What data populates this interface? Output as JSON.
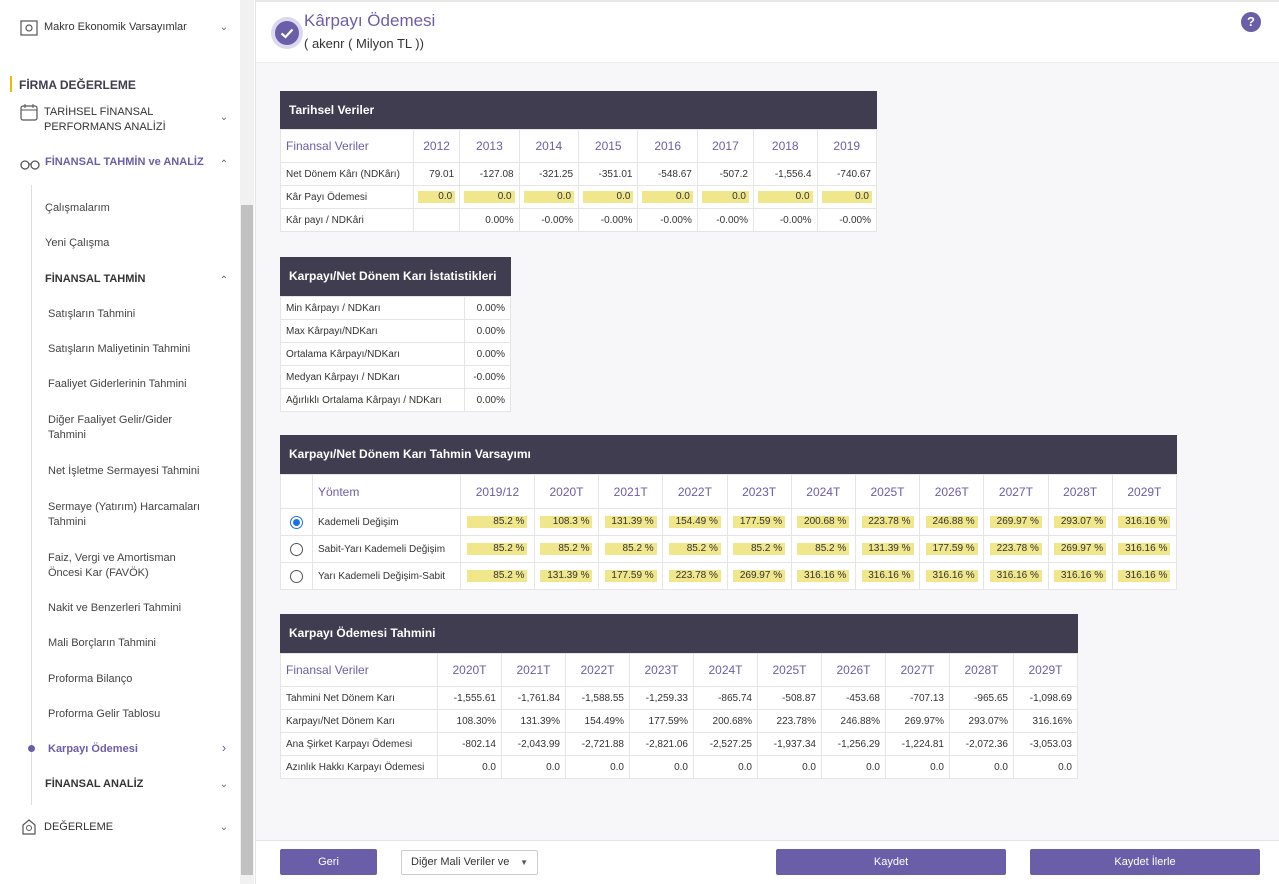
{
  "sidebar": {
    "macro_label": "Makro Ekonomik Varsayımlar",
    "firma_label": "FİRMA DEĞERLEME",
    "tarihsel_label_1": "TARİHSEL FİNANSAL",
    "tarihsel_label_2": "PERFORMANS ANALİZİ",
    "finansal_tahmin_analiz": "FİNANSAL TAHMİN ve ANALİZ",
    "calismalarim": "Çalışmalarım",
    "yeni_calisma": "Yeni Çalışma",
    "finansal_tahmin": "FİNANSAL TAHMİN",
    "items": [
      "Satışların Tahmini",
      "Satışların Maliyetinin Tahmini",
      "Faaliyet Giderlerinin Tahmini",
      "Diğer Faaliyet Gelir/Gider",
      "Tahmini",
      "Net İşletme Sermayesi Tahmini",
      "Sermaye (Yatırım) Harcamaları",
      "Tahmini",
      "Faiz, Vergi ve Amortisman",
      "Öncesi Kar (FAVÖK)",
      "Nakit ve Benzerleri Tahmini",
      "Mali Borçların Tahmini",
      "Proforma Bilanço",
      "Proforma Gelir Tablosu",
      "Karpayı Ödemesi"
    ],
    "finansal_analiz": "FİNANSAL ANALİZ",
    "degerleme": "DEĞERLEME"
  },
  "header": {
    "title": "Kârpayı Ödemesi",
    "subtitle": "( akenr ( Milyon TL ))",
    "help": "?"
  },
  "tarihsel": {
    "title": "Tarihsel Veriler",
    "col0": "Finansal Veriler",
    "years": [
      "2012",
      "2013",
      "2014",
      "2015",
      "2016",
      "2017",
      "2018",
      "2019"
    ],
    "rows": [
      {
        "label": "Net Dönem Kârı (NDKârı)",
        "values": [
          "79.01",
          "-127.08",
          "-321.25",
          "-351.01",
          "-548.67",
          "-507.2",
          "-1,556.4",
          "-740.67"
        ]
      },
      {
        "label": "Kâr Payı Ödemesi",
        "values": [
          "0.0",
          "0.0",
          "0.0",
          "0.0",
          "0.0",
          "0.0",
          "0.0",
          "0.0"
        ]
      },
      {
        "label": "Kâr payı / NDKâri",
        "values": [
          "",
          "0.00%",
          "-0.00%",
          "-0.00%",
          "-0.00%",
          "-0.00%",
          "-0.00%",
          "-0.00%"
        ]
      }
    ]
  },
  "stats": {
    "title": "Karpayı/Net Dönem Karı İstatistikleri",
    "rows": [
      {
        "label": "Min Kârpayı / NDKarı",
        "value": "0.00%"
      },
      {
        "label": "Max Kârpayı/NDKarı",
        "value": "0.00%"
      },
      {
        "label": "Ortalama Kârpayı/NDKarı",
        "value": "0.00%"
      },
      {
        "label": "Medyan Kârpayı / NDKarı",
        "value": "-0.00%"
      },
      {
        "label": "Ağırlıklı Ortalama Kârpayı / NDKarı",
        "value": "0.00%"
      }
    ]
  },
  "varsayim": {
    "title": "Karpayı/Net Dönem Karı Tahmin Varsayımı",
    "col0": "Yöntem",
    "years": [
      "2019/12",
      "2020T",
      "2021T",
      "2022T",
      "2023T",
      "2024T",
      "2025T",
      "2026T",
      "2027T",
      "2028T",
      "2029T"
    ],
    "rows": [
      {
        "label": "Kademeli Değişim",
        "selected": true,
        "values": [
          "85.2 %",
          "108.3 %",
          "131.39 %",
          "154.49 %",
          "177.59 %",
          "200.68 %",
          "223.78 %",
          "246.88 %",
          "269.97 %",
          "293.07 %",
          "316.16 %"
        ]
      },
      {
        "label": "Sabit-Yarı Kademeli Değişim",
        "selected": false,
        "values": [
          "85.2 %",
          "85.2 %",
          "85.2 %",
          "85.2 %",
          "85.2 %",
          "85.2 %",
          "131.39 %",
          "177.59 %",
          "223.78 %",
          "269.97 %",
          "316.16 %"
        ]
      },
      {
        "label": "Yarı Kademeli Değişim-Sabit",
        "selected": false,
        "values": [
          "85.2 %",
          "131.39 %",
          "177.59 %",
          "223.78 %",
          "269.97 %",
          "316.16 %",
          "316.16 %",
          "316.16 %",
          "316.16 %",
          "316.16 %",
          "316.16 %"
        ]
      }
    ]
  },
  "tahmin": {
    "title": "Karpayı Ödemesi Tahmini",
    "col0": "Finansal Veriler",
    "years": [
      "2020T",
      "2021T",
      "2022T",
      "2023T",
      "2024T",
      "2025T",
      "2026T",
      "2027T",
      "2028T",
      "2029T"
    ],
    "rows": [
      {
        "label": "Tahmini Net Dönem Karı",
        "values": [
          "-1,555.61",
          "-1,761.84",
          "-1,588.55",
          "-1,259.33",
          "-865.74",
          "-508.87",
          "-453.68",
          "-707.13",
          "-965.65",
          "-1,098.69"
        ]
      },
      {
        "label": "Karpayı/Net Dönem Karı",
        "values": [
          "108.30%",
          "131.39%",
          "154.49%",
          "177.59%",
          "200.68%",
          "223.78%",
          "246.88%",
          "269.97%",
          "293.07%",
          "316.16%"
        ]
      },
      {
        "label": "Ana Şirket Karpayı Ödemesi",
        "values": [
          "-802.14",
          "-2,043.99",
          "-2,721.88",
          "-2,821.06",
          "-2,527.25",
          "-1,937.34",
          "-1,256.29",
          "-1,224.81",
          "-2,072.36",
          "-3,053.03"
        ]
      },
      {
        "label": "Azınlık Hakkı Karpayı Ödemesi",
        "values": [
          "0.0",
          "0.0",
          "0.0",
          "0.0",
          "0.0",
          "0.0",
          "0.0",
          "0.0",
          "0.0",
          "0.0"
        ]
      }
    ]
  },
  "footer": {
    "back": "Geri",
    "dropdown": "Diğer Mali Veriler ve",
    "save": "Kaydet",
    "save_next": "Kaydet İlerle"
  },
  "colors": {
    "accent": "#6b5ea8",
    "panel_head": "#3f3d4f",
    "highlight": "#f0e68c",
    "firma_bar": "#f5b700"
  }
}
